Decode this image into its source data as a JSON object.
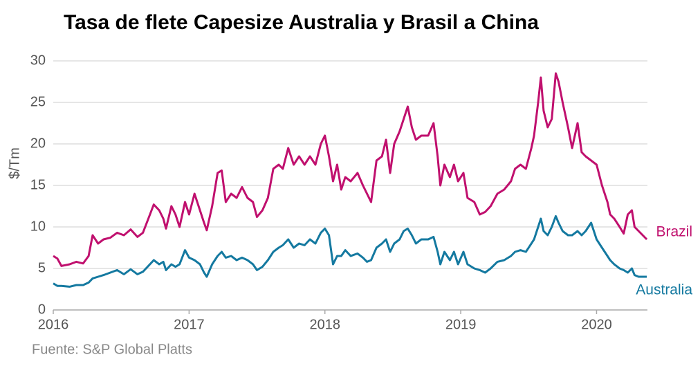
{
  "chart_data": {
    "type": "line",
    "title": "Tasa de flete Capesize Australia y Brasil a China",
    "ylabel": "$/Tm",
    "source": "Fuente: S&P Global Platts",
    "x": [
      2016.0,
      2016.03,
      2016.06,
      2016.12,
      2016.17,
      2016.22,
      2016.26,
      2016.29,
      2016.33,
      2016.37,
      2016.42,
      2016.47,
      2016.52,
      2016.57,
      2016.62,
      2016.66,
      2016.7,
      2016.74,
      2016.78,
      2016.81,
      2016.83,
      2016.87,
      2016.9,
      2016.93,
      2016.97,
      2017.0,
      2017.04,
      2017.08,
      2017.11,
      2017.13,
      2017.17,
      2017.21,
      2017.24,
      2017.27,
      2017.31,
      2017.35,
      2017.39,
      2017.43,
      2017.47,
      2017.5,
      2017.54,
      2017.58,
      2017.62,
      2017.66,
      2017.69,
      2017.73,
      2017.77,
      2017.81,
      2017.85,
      2017.89,
      2017.93,
      2017.97,
      2018.0,
      2018.03,
      2018.06,
      2018.09,
      2018.12,
      2018.15,
      2018.19,
      2018.24,
      2018.28,
      2018.31,
      2018.34,
      2018.38,
      2018.42,
      2018.45,
      2018.48,
      2018.51,
      2018.55,
      2018.58,
      2018.61,
      2018.64,
      2018.67,
      2018.71,
      2018.76,
      2018.8,
      2018.83,
      2018.85,
      2018.88,
      2018.92,
      2018.95,
      2018.98,
      2019.02,
      2019.05,
      2019.1,
      2019.14,
      2019.18,
      2019.22,
      2019.27,
      2019.32,
      2019.37,
      2019.4,
      2019.44,
      2019.48,
      2019.52,
      2019.54,
      2019.57,
      2019.59,
      2019.61,
      2019.64,
      2019.67,
      2019.7,
      2019.72,
      2019.75,
      2019.79,
      2019.82,
      2019.86,
      2019.89,
      2019.92,
      2019.96,
      2020.0,
      2020.04,
      2020.08,
      2020.1,
      2020.13,
      2020.17,
      2020.2,
      2020.23,
      2020.26,
      2020.28,
      2020.31,
      2020.37
    ],
    "series": [
      {
        "name": "Brazil",
        "color": "#c0106e",
        "values": [
          6.5,
          6.2,
          5.3,
          5.5,
          5.8,
          5.6,
          6.5,
          9.0,
          8.0,
          8.5,
          8.7,
          9.3,
          9.0,
          9.7,
          8.8,
          9.3,
          11.0,
          12.7,
          12.0,
          11.0,
          9.8,
          12.5,
          11.5,
          10.0,
          13.0,
          11.5,
          14.0,
          12.0,
          10.5,
          9.6,
          12.5,
          16.5,
          16.8,
          13.0,
          14.0,
          13.5,
          14.8,
          13.5,
          13.0,
          11.2,
          12.0,
          13.5,
          17.0,
          17.5,
          17.0,
          19.5,
          17.5,
          18.5,
          17.5,
          18.5,
          17.5,
          20.0,
          21.0,
          18.5,
          15.5,
          17.5,
          14.5,
          16.0,
          15.5,
          16.5,
          15.0,
          14.0,
          13.0,
          18.0,
          18.5,
          20.5,
          16.5,
          20.0,
          21.5,
          23.0,
          24.5,
          22.0,
          20.5,
          21.0,
          21.0,
          22.5,
          18.5,
          15.0,
          17.5,
          16.0,
          17.5,
          15.5,
          16.5,
          13.5,
          13.0,
          11.5,
          11.8,
          12.5,
          14.0,
          14.5,
          15.5,
          17.0,
          17.5,
          17.0,
          19.5,
          21.0,
          25.0,
          28.0,
          24.0,
          22.0,
          23.0,
          28.5,
          27.5,
          25.0,
          22.0,
          19.5,
          22.5,
          19.0,
          18.5,
          18.0,
          17.5,
          15.0,
          13.0,
          11.5,
          11.0,
          10.0,
          9.2,
          11.5,
          12.0,
          10.0,
          9.5,
          8.5
        ]
      },
      {
        "name": "Australia",
        "color": "#1479a0",
        "values": [
          3.2,
          2.9,
          2.9,
          2.8,
          3.0,
          3.0,
          3.3,
          3.8,
          4.0,
          4.2,
          4.5,
          4.8,
          4.3,
          4.9,
          4.3,
          4.6,
          5.3,
          6.0,
          5.5,
          5.8,
          4.8,
          5.5,
          5.2,
          5.5,
          7.2,
          6.3,
          6.0,
          5.5,
          4.5,
          4.0,
          5.5,
          6.5,
          7.0,
          6.3,
          6.5,
          6.0,
          6.3,
          6.0,
          5.5,
          4.8,
          5.2,
          6.0,
          7.0,
          7.5,
          7.8,
          8.5,
          7.5,
          8.0,
          7.8,
          8.5,
          8.0,
          9.3,
          9.8,
          9.0,
          5.5,
          6.5,
          6.5,
          7.2,
          6.5,
          6.8,
          6.3,
          5.8,
          6.0,
          7.5,
          8.0,
          8.5,
          7.0,
          8.0,
          8.5,
          9.5,
          9.8,
          9.0,
          8.0,
          8.5,
          8.5,
          8.8,
          7.0,
          5.5,
          7.0,
          6.0,
          7.0,
          5.5,
          7.0,
          5.5,
          5.0,
          4.8,
          4.5,
          5.0,
          5.8,
          6.0,
          6.5,
          7.0,
          7.2,
          7.0,
          8.0,
          8.5,
          10.0,
          11.0,
          9.5,
          9.0,
          10.0,
          11.3,
          10.5,
          9.5,
          9.0,
          9.0,
          9.5,
          9.0,
          9.5,
          10.5,
          8.5,
          7.5,
          6.5,
          6.0,
          5.5,
          5.0,
          4.8,
          4.5,
          5.0,
          4.2,
          4.0,
          4.0
        ]
      }
    ],
    "xlim": [
      2016,
      2020.4
    ],
    "xticks": [
      2016,
      2017,
      2018,
      2019,
      2020
    ],
    "ylim": [
      0,
      30
    ],
    "yticks": [
      0,
      5,
      10,
      15,
      20,
      25,
      30
    ],
    "grid": true
  }
}
